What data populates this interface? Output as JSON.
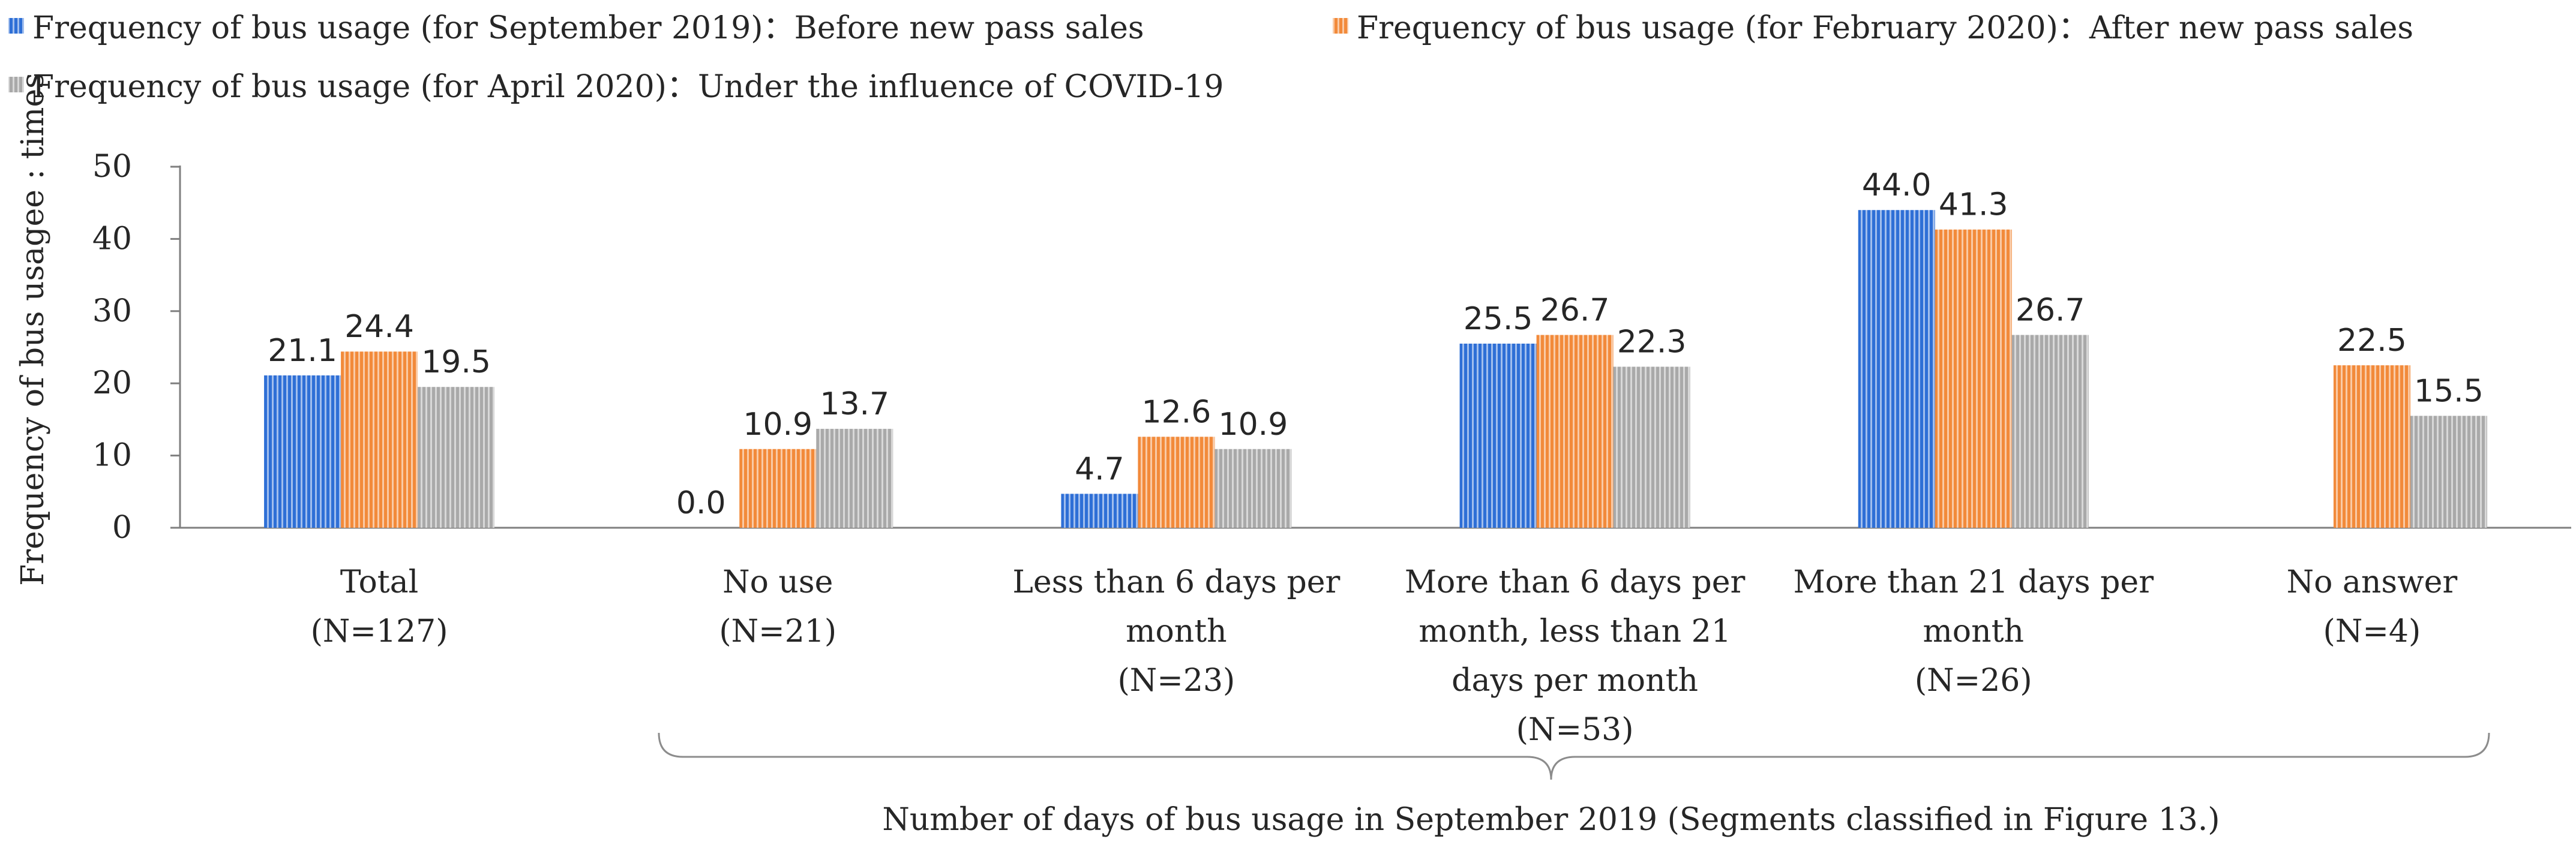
{
  "chart_data": {
    "type": "bar",
    "ylabel": "Frequency of bus usagee : times",
    "ylim": [
      0,
      50
    ],
    "yticks": [
      0,
      10,
      20,
      30,
      40,
      50
    ],
    "categories": [
      [
        "Total",
        "(N=127)"
      ],
      [
        "No use",
        "(N=21)"
      ],
      [
        "Less than 6 days per",
        "month",
        "(N=23)"
      ],
      [
        "More than 6 days per",
        "month, less than 21",
        "days per month",
        "(N=53)"
      ],
      [
        "More than 21 days per",
        "month",
        "(N=26)"
      ],
      [
        "No answer",
        "(N=4)"
      ]
    ],
    "series": [
      {
        "name": "Frequency of bus usage (for September 2019)：Before new pass sales",
        "color": "#2E6FD6",
        "values": [
          21.1,
          0.0,
          4.7,
          25.5,
          44.0,
          null
        ],
        "labels": [
          "21.1",
          "0.0",
          "4.7",
          "25.5",
          "44.0",
          ""
        ]
      },
      {
        "name": "Frequency of bus usage (for February 2020)：After new pass sales",
        "color": "#F28A3A",
        "values": [
          24.4,
          10.9,
          12.6,
          26.7,
          41.3,
          22.5
        ],
        "labels": [
          "24.4",
          "10.9",
          "12.6",
          "26.7",
          "41.3",
          "22.5"
        ]
      },
      {
        "name": "Frequency of bus usage (for April 2020)：Under the influence of COVID-19",
        "color": "#A9A9A9",
        "values": [
          19.5,
          13.7,
          10.9,
          22.3,
          26.7,
          15.5
        ],
        "labels": [
          "19.5",
          "13.7",
          "10.9",
          "22.3",
          "26.7",
          "15.5"
        ]
      }
    ],
    "bracket_label": "Number of days of bus usage in September 2019  (Segments classified in Figure 13.)",
    "legend_position": "top-left"
  }
}
